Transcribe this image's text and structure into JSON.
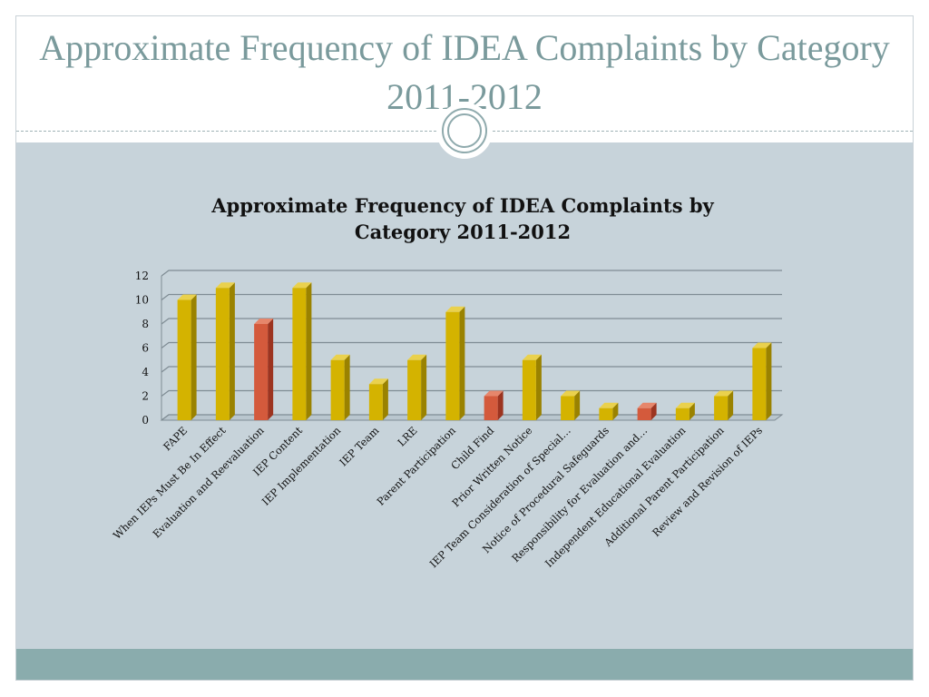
{
  "slide": {
    "title": "Approximate Frequency of IDEA Complaints by Category 2011-2012"
  },
  "chart_data": {
    "type": "bar",
    "title_lines": [
      "Approximate Frequency of IDEA Complaints by",
      "Category 2011-2012"
    ],
    "categories": [
      "FAPE",
      "When IEPs Must Be In Effect",
      "Evaluation and Reevaluation",
      "IEP Content",
      "IEP Implementation",
      "IEP Team",
      "LRE",
      "Parent Participation",
      "Child Find",
      "Prior Written Notice",
      "IEP Team Consideration of Special…",
      "Notice of Procedural Safeguards",
      "Responsibility for Evaluation and…",
      "Independent Educational Evaluation",
      "Additional Parent Participation",
      "Review and Revision of IEPs"
    ],
    "values": [
      10,
      11,
      8,
      11,
      5,
      3,
      5,
      9,
      2,
      5,
      2,
      1,
      1,
      1,
      2,
      6
    ],
    "highlight_categories": [
      "Evaluation and Reevaluation",
      "Child Find",
      "Responsibility for Evaluation and…"
    ],
    "ylim": [
      0,
      12
    ],
    "yticks": [
      0,
      2,
      4,
      6,
      8,
      10,
      12
    ],
    "grid": true,
    "legend": "none",
    "bar_3d": true,
    "colors": {
      "bar": "#d4b300",
      "bar_side": "#9a8200",
      "bar_top": "#ead14d",
      "highlight": "#d45a3c",
      "highlight_side": "#9c3420",
      "highlight_top": "#e6866b",
      "grid": "#7f8c94"
    }
  }
}
